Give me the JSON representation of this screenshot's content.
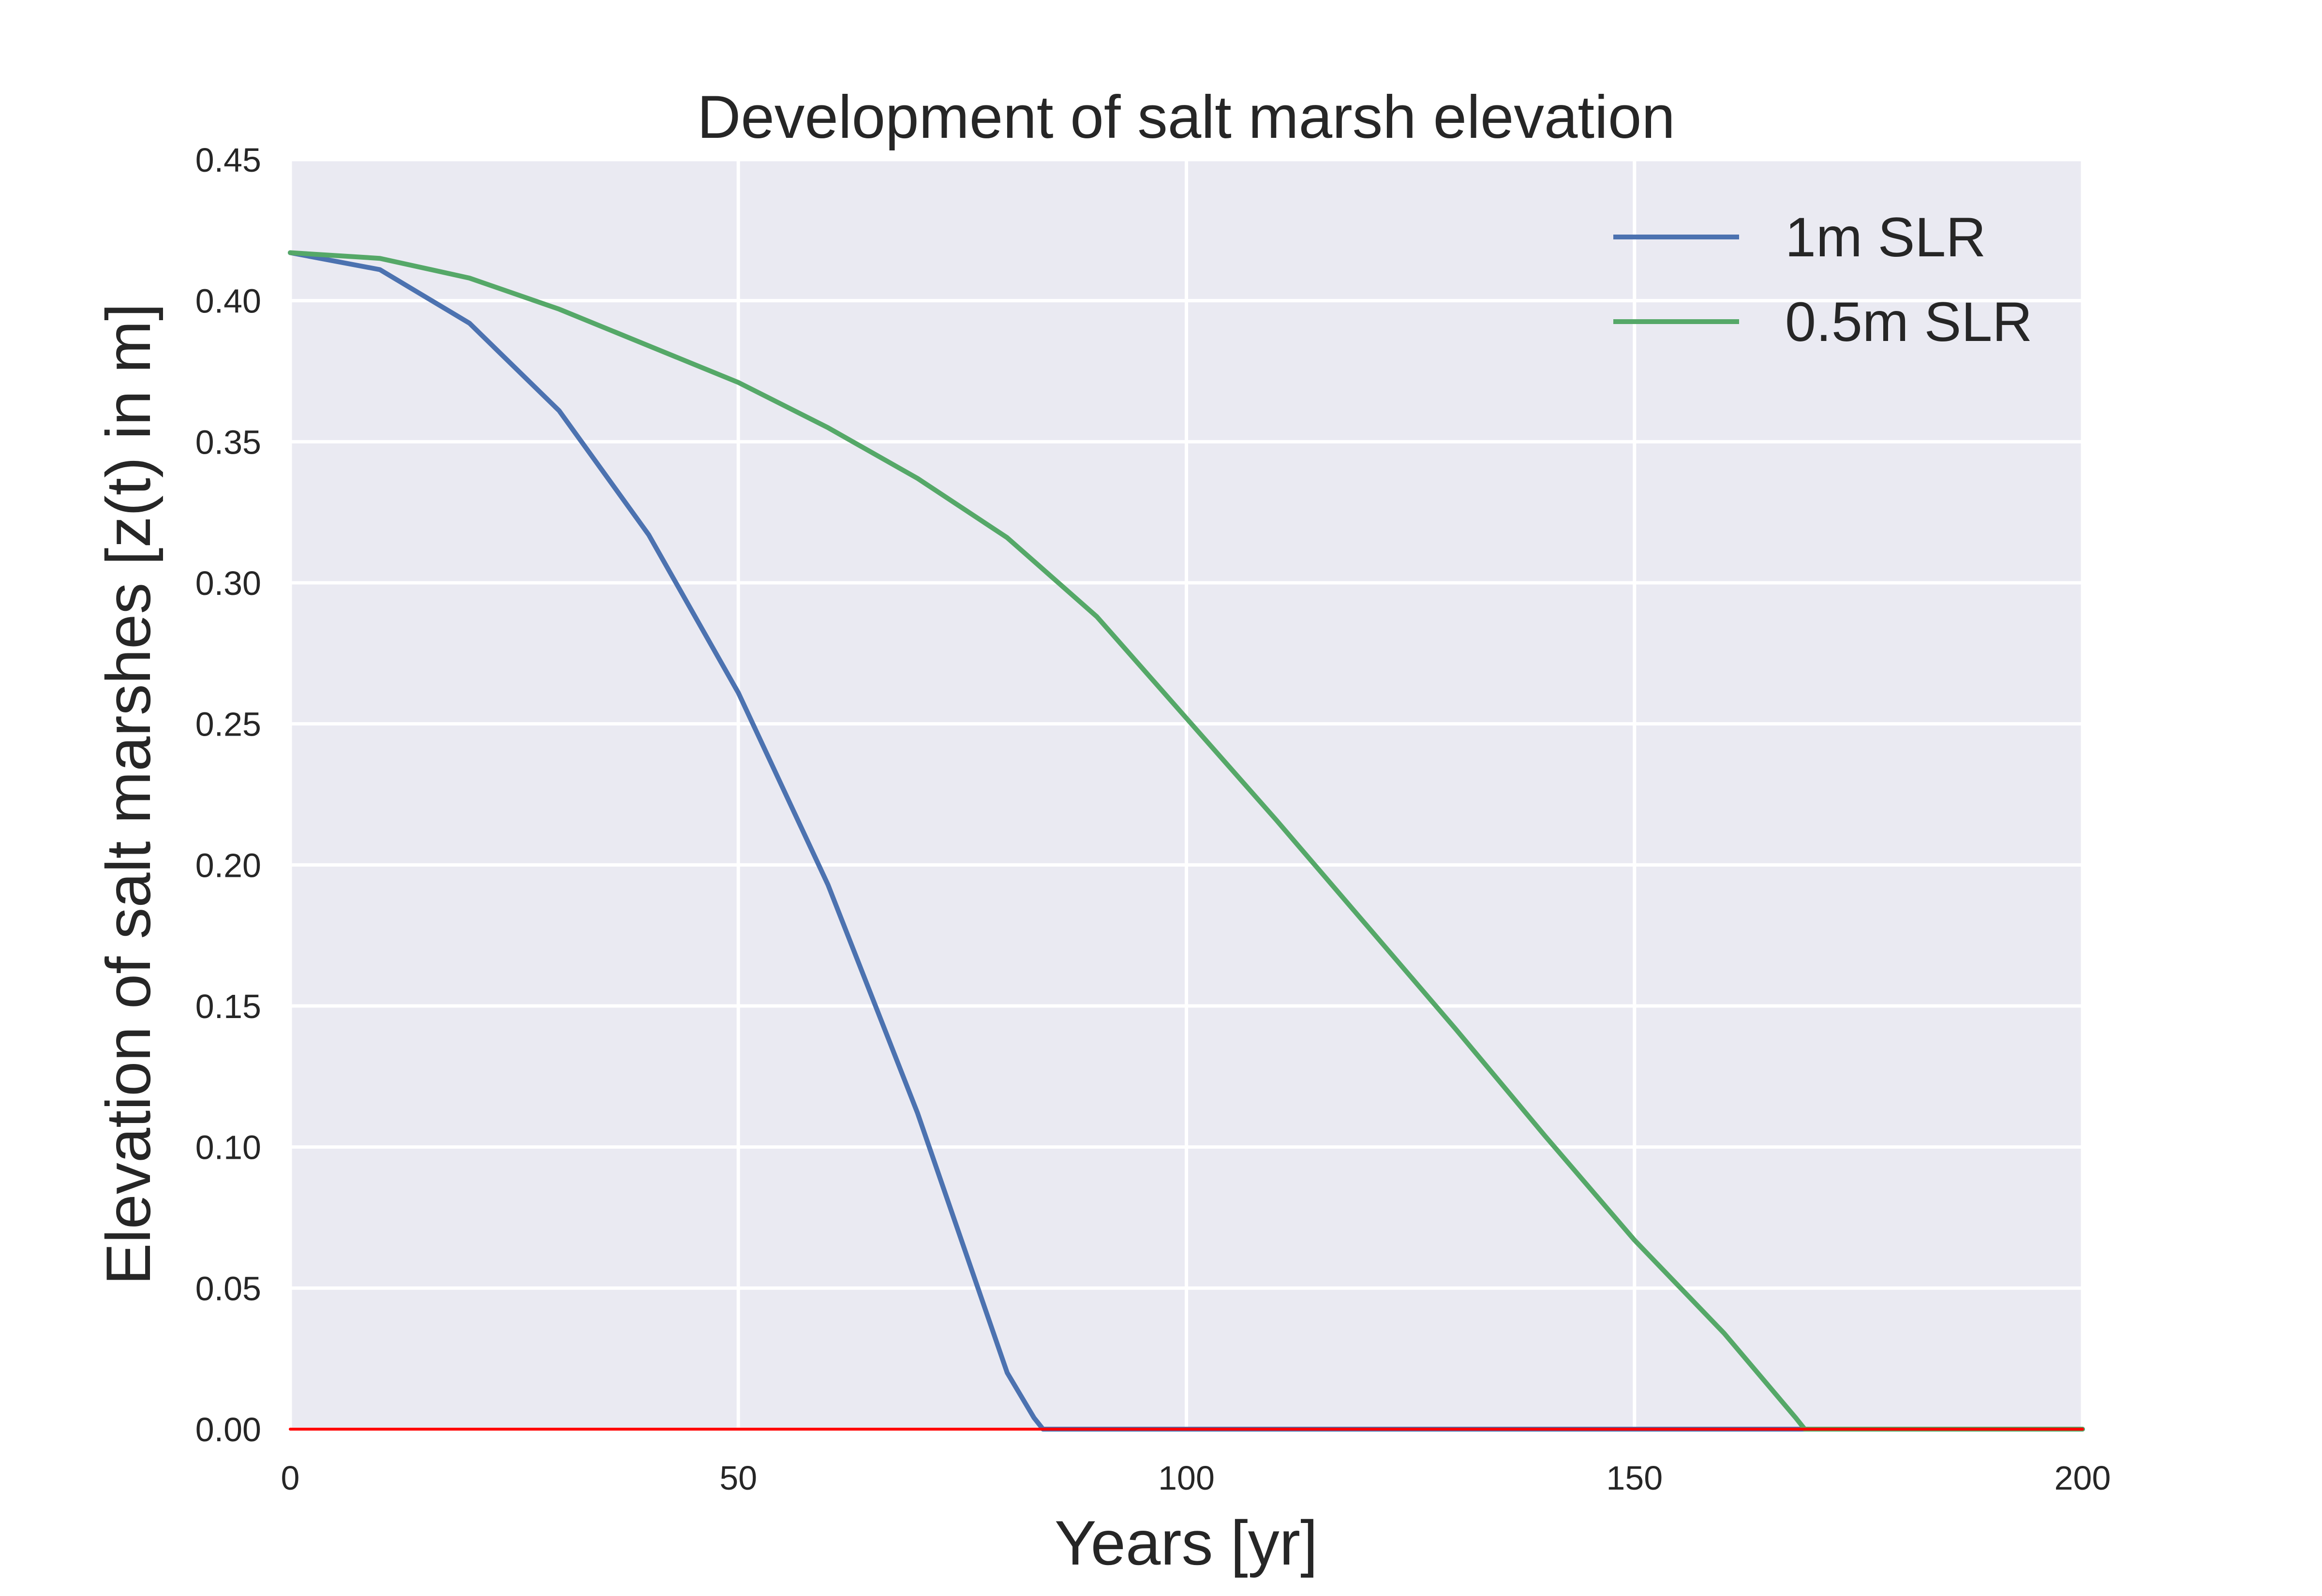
{
  "chart_data": {
    "type": "line",
    "title": "Development of salt marsh elevation",
    "xlabel": "Years [yr]",
    "ylabel": "Elevation of salt marshes [z(t) in m]",
    "xlim": [
      0,
      200
    ],
    "ylim": [
      0,
      0.45
    ],
    "xticks": [
      0,
      50,
      100,
      150,
      200
    ],
    "xtick_labels": [
      "0",
      "50",
      "100",
      "150",
      "200"
    ],
    "yticks": [
      0,
      0.05,
      0.1,
      0.15,
      0.2,
      0.25,
      0.3,
      0.35,
      0.4,
      0.45
    ],
    "ytick_labels": [
      "0.00",
      "0.05",
      "0.10",
      "0.15",
      "0.20",
      "0.25",
      "0.30",
      "0.35",
      "0.40",
      "0.45"
    ],
    "grid": true,
    "legend_position": "top-right",
    "background_color": "#EAEAF2",
    "series": [
      {
        "name": "1m SLR",
        "color": "#4C72B0",
        "x": [
          0,
          10,
          20,
          30,
          40,
          50,
          60,
          70,
          80,
          83,
          84,
          200
        ],
        "y": [
          0.417,
          0.411,
          0.392,
          0.361,
          0.317,
          0.261,
          0.193,
          0.112,
          0.02,
          0.004,
          0,
          0
        ]
      },
      {
        "name": "0.5m SLR",
        "color": "#55A868",
        "x": [
          0,
          10,
          20,
          30,
          40,
          50,
          60,
          70,
          80,
          90,
          100,
          110,
          120,
          130,
          140,
          150,
          160,
          168,
          169,
          200
        ],
        "y": [
          0.417,
          0.415,
          0.408,
          0.397,
          0.384,
          0.371,
          0.355,
          0.337,
          0.316,
          0.288,
          0.252,
          0.216,
          0.179,
          0.142,
          0.104,
          0.067,
          0.034,
          0.004,
          0,
          0
        ]
      },
      {
        "name": "",
        "color": "#FF0000",
        "x": [
          0,
          200
        ],
        "y": [
          0,
          0
        ]
      }
    ]
  }
}
